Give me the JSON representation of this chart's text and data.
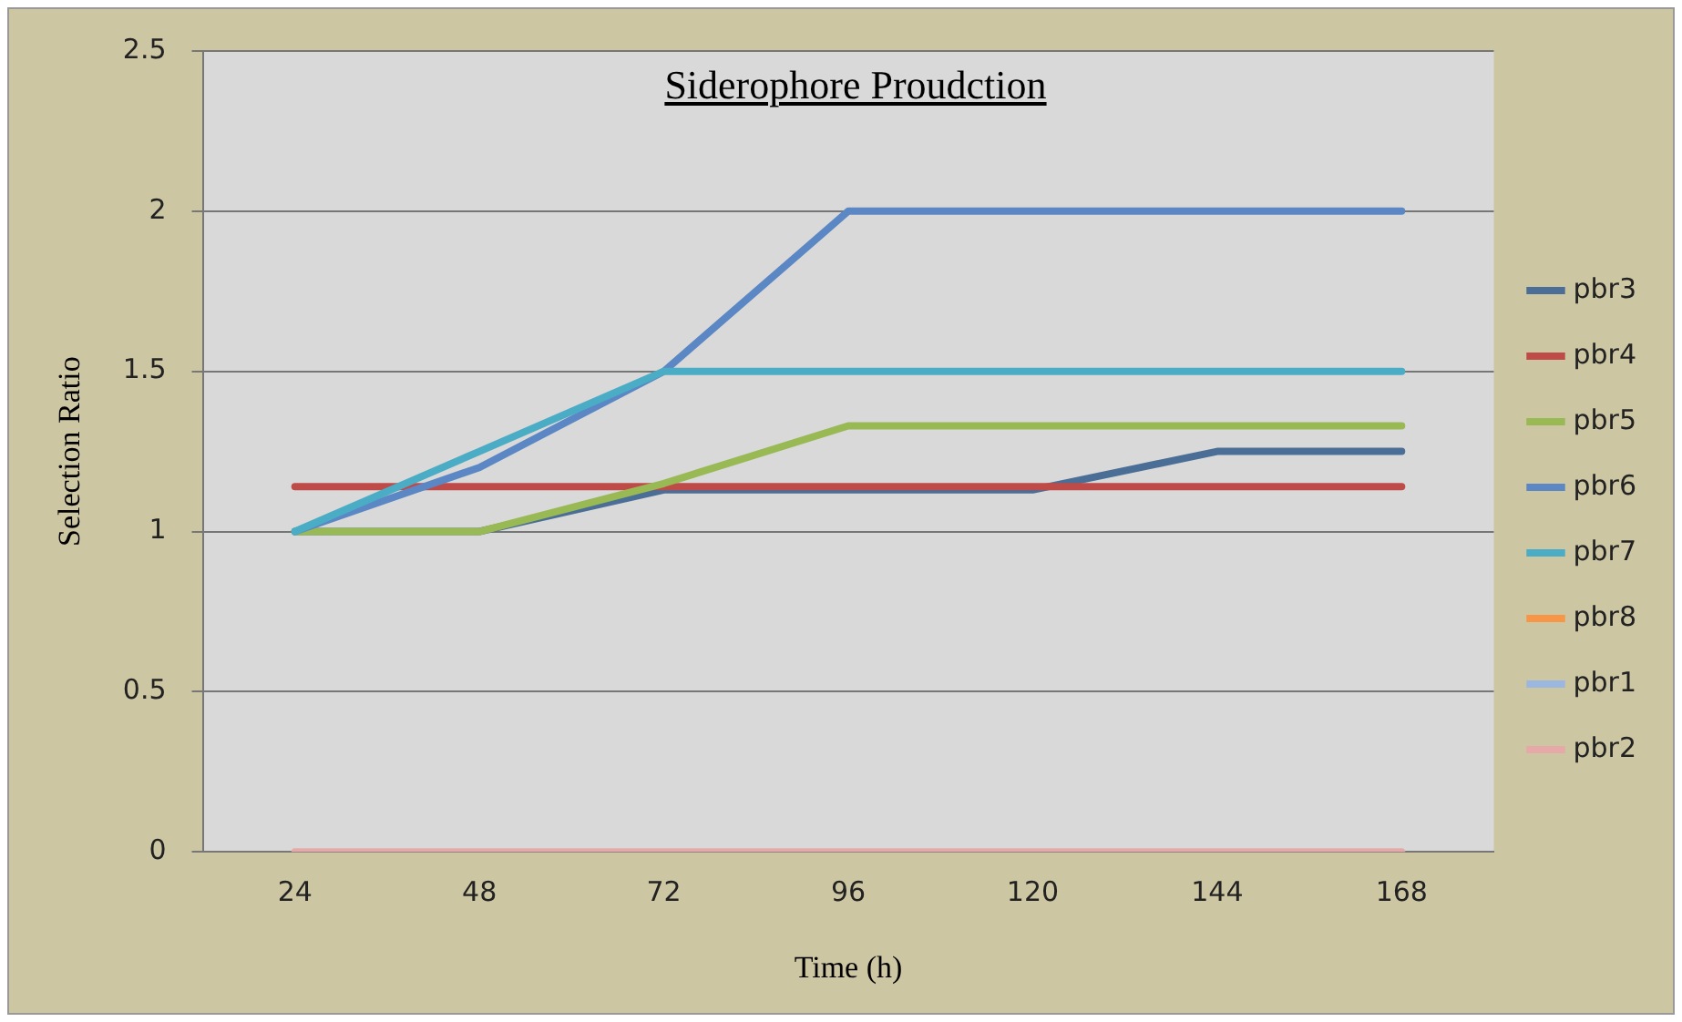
{
  "chart_data": {
    "type": "line",
    "title": "Siderophore Proudction",
    "xlabel": "Time (h)",
    "ylabel": "Selection Ratio",
    "categories": [
      "24",
      "48",
      "72",
      "96",
      "120",
      "144",
      "168"
    ],
    "ylim": [
      0,
      2.5
    ],
    "yticks": [
      0,
      0.5,
      1,
      1.5,
      2,
      2.5
    ],
    "grid": "y",
    "legend": "right",
    "marker": "none",
    "line_style": "solid",
    "series": [
      {
        "name": "pbr3",
        "color": "#4a6e96",
        "values": [
          1,
          1,
          1.13,
          1.13,
          1.13,
          1.25,
          1.25
        ]
      },
      {
        "name": "pbr4",
        "color": "#be4b48",
        "values": [
          1.14,
          1.14,
          1.14,
          1.14,
          1.14,
          1.14,
          1.14
        ]
      },
      {
        "name": "pbr5",
        "color": "#98b954",
        "values": [
          1,
          1,
          1.15,
          1.33,
          1.33,
          1.33,
          1.33
        ]
      },
      {
        "name": "pbr6",
        "color": "#5b87c5",
        "values": [
          1,
          1.2,
          1.5,
          2,
          2,
          2,
          2
        ]
      },
      {
        "name": "pbr7",
        "color": "#4bacc6",
        "values": [
          1,
          1.25,
          1.5,
          1.5,
          1.5,
          1.5,
          1.5
        ]
      },
      {
        "name": "pbr8",
        "color": "#f79646",
        "values": [
          null,
          null,
          null,
          null,
          null,
          null,
          null
        ]
      },
      {
        "name": "pbr1",
        "color": "#9bb7e0",
        "values": [
          null,
          null,
          null,
          null,
          null,
          null,
          null
        ]
      },
      {
        "name": "pbr2",
        "color": "#e6a9a7",
        "values": [
          0,
          0,
          0,
          0,
          0,
          0,
          0
        ]
      }
    ]
  }
}
